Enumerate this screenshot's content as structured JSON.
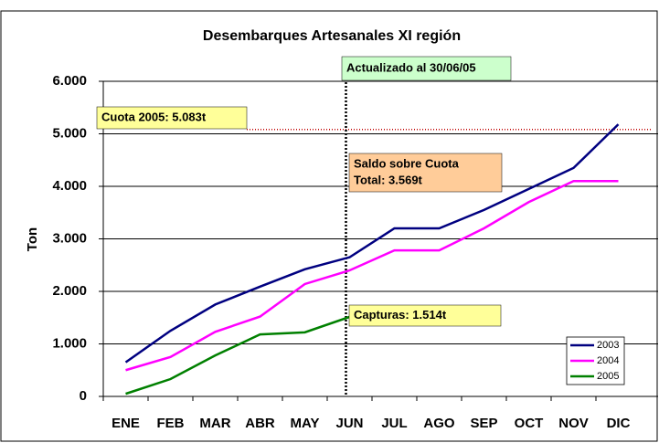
{
  "chart_data": {
    "type": "line",
    "title": "Desembarques Artesanales XI región",
    "y_label": "Ton",
    "categories": [
      "ENE",
      "FEB",
      "MAR",
      "ABR",
      "MAY",
      "JUN",
      "JUL",
      "AGO",
      "SEP",
      "OCT",
      "NOV",
      "DIC"
    ],
    "series": [
      {
        "name": "2003",
        "color": "#000080",
        "values": [
          650,
          1250,
          1750,
          2090,
          2420,
          2650,
          3200,
          3200,
          3550,
          3950,
          4350,
          5180
        ]
      },
      {
        "name": "2004",
        "color": "#ff00ff",
        "values": [
          500,
          750,
          1230,
          1520,
          2140,
          2400,
          2780,
          2780,
          3200,
          3700,
          4100,
          4100
        ]
      },
      {
        "name": "2005",
        "color": "#008000",
        "values": [
          50,
          330,
          780,
          1180,
          1220,
          1514,
          null,
          null,
          null,
          null,
          null,
          null
        ]
      }
    ],
    "ylim": [
      0,
      6000
    ],
    "yticks": [
      {
        "value": 0,
        "label": "0"
      },
      {
        "value": 1000,
        "label": "1.000"
      },
      {
        "value": 2000,
        "label": "2.000"
      },
      {
        "value": 3000,
        "label": "3.000"
      },
      {
        "value": 4000,
        "label": "4.000"
      },
      {
        "value": 5000,
        "label": "5.000"
      },
      {
        "value": 6000,
        "label": "6.000"
      }
    ],
    "grid": true,
    "legend": "lower right",
    "quota": {
      "value": 5083,
      "color": "#c00000"
    },
    "annotations": [
      {
        "text": "Actualizado al 30/06/05",
        "color": "#ccffcc"
      },
      {
        "text": "Cuota 2005: 5.083t",
        "color": "#ffff99"
      },
      {
        "lines": [
          "Saldo sobre Cuota",
          "Total: 3.569t"
        ],
        "color": "#ffcc99"
      },
      {
        "text": "Capturas: 1.514t",
        "color": "#ffff99"
      }
    ]
  }
}
